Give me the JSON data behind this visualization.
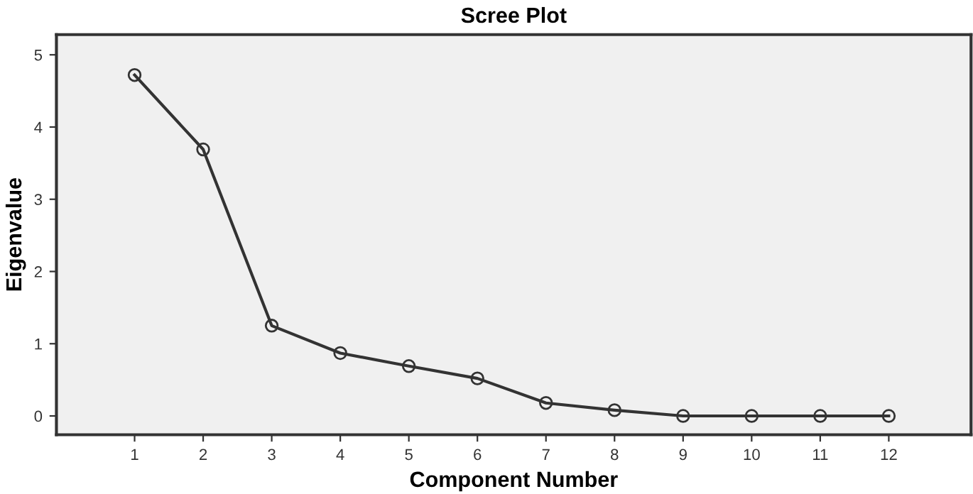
{
  "chart_data": {
    "type": "line",
    "title": "Scree Plot",
    "xlabel": "Component Number",
    "ylabel": "Eigenvalue",
    "categories": [
      "1",
      "2",
      "3",
      "4",
      "5",
      "6",
      "7",
      "8",
      "9",
      "10",
      "11",
      "12"
    ],
    "series": [
      {
        "color": "#333333",
        "values": [
          4.72,
          3.69,
          1.25,
          0.87,
          0.69,
          0.52,
          0.18,
          0.08,
          0.0,
          0.0,
          0.0,
          0.0
        ]
      }
    ],
    "ylim": [
      -0.26,
      5.28
    ],
    "yticks": [
      0,
      1,
      2,
      3,
      4,
      5
    ],
    "marker": "circle",
    "line_style": "solid",
    "grid": false,
    "legend": false
  }
}
